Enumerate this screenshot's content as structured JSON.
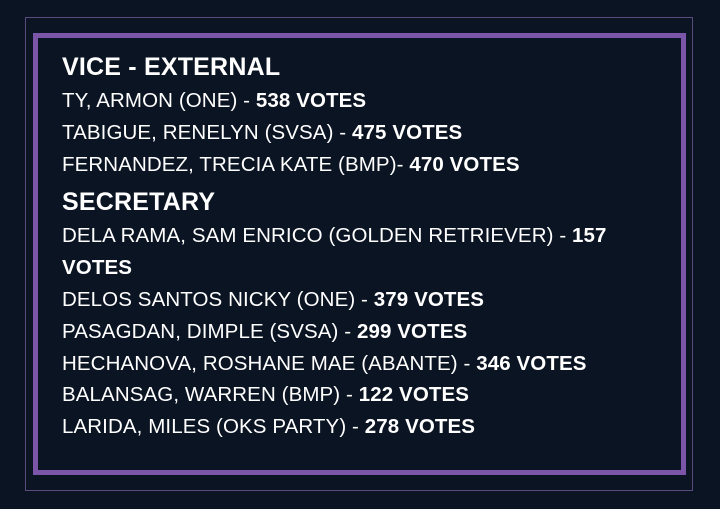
{
  "sections": [
    {
      "title": "VICE - EXTERNAL",
      "entries": [
        {
          "name": "TY, ARMON (ONE) - ",
          "votes": "538 VOTES"
        },
        {
          "name": "TABIGUE, RENELYN (SVSA) - ",
          "votes": "475 VOTES"
        },
        {
          "name": "FERNANDEZ, TRECIA KATE (BMP)- ",
          "votes": "470 VOTES"
        }
      ]
    },
    {
      "title": "SECRETARY",
      "entries": [
        {
          "name": "DELA RAMA, SAM ENRICO (GOLDEN RETRIEVER) - ",
          "votes": "157 VOTES"
        },
        {
          "name": "DELOS SANTOS NICKY (ONE) - ",
          "votes": "379 VOTES"
        },
        {
          "name": "PASAGDAN, DIMPLE (SVSA) - ",
          "votes": "299 VOTES"
        },
        {
          "name": "HECHANOVA, ROSHANE MAE (ABANTE) - ",
          "votes": "346 VOTES"
        },
        {
          "name": "BALANSAG, WARREN (BMP)  - ",
          "votes": "122 VOTES"
        },
        {
          "name": "LARIDA, MILES (OKS PARTY) - ",
          "votes": "278 VOTES"
        }
      ]
    }
  ],
  "colors": {
    "background": "#0b1422",
    "frame": "#7b55a8",
    "text": "#ffffff"
  }
}
